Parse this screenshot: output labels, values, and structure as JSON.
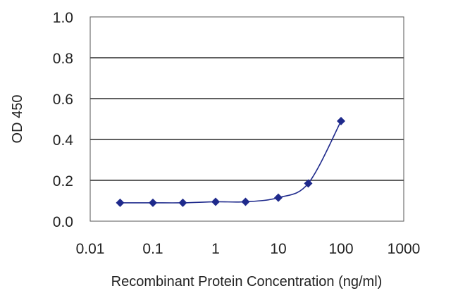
{
  "chart_data": {
    "type": "line",
    "title": "",
    "xlabel": "Recombinant Protein Concentration (ng/ml)",
    "ylabel": "OD 450",
    "x_scale": "log",
    "xlim": [
      0.01,
      1000
    ],
    "ylim": [
      0.0,
      1.0
    ],
    "x_ticks": [
      "0.01",
      "0.1",
      "1",
      "10",
      "100",
      "1000"
    ],
    "y_ticks": [
      "0.0",
      "0.2",
      "0.4",
      "0.6",
      "0.8",
      "1.0"
    ],
    "grid": "horizontal",
    "legend": "none",
    "series": [
      {
        "x": [
          0.03,
          0.1,
          0.3,
          1,
          3,
          10,
          30,
          100
        ],
        "y": [
          0.09,
          0.09,
          0.09,
          0.095,
          0.095,
          0.115,
          0.185,
          0.49
        ],
        "color": "#1f2a8c",
        "marker": "diamond"
      }
    ],
    "colors": {
      "grid": "#000000",
      "frame": "#555555",
      "line": "#1f2a8c"
    }
  }
}
